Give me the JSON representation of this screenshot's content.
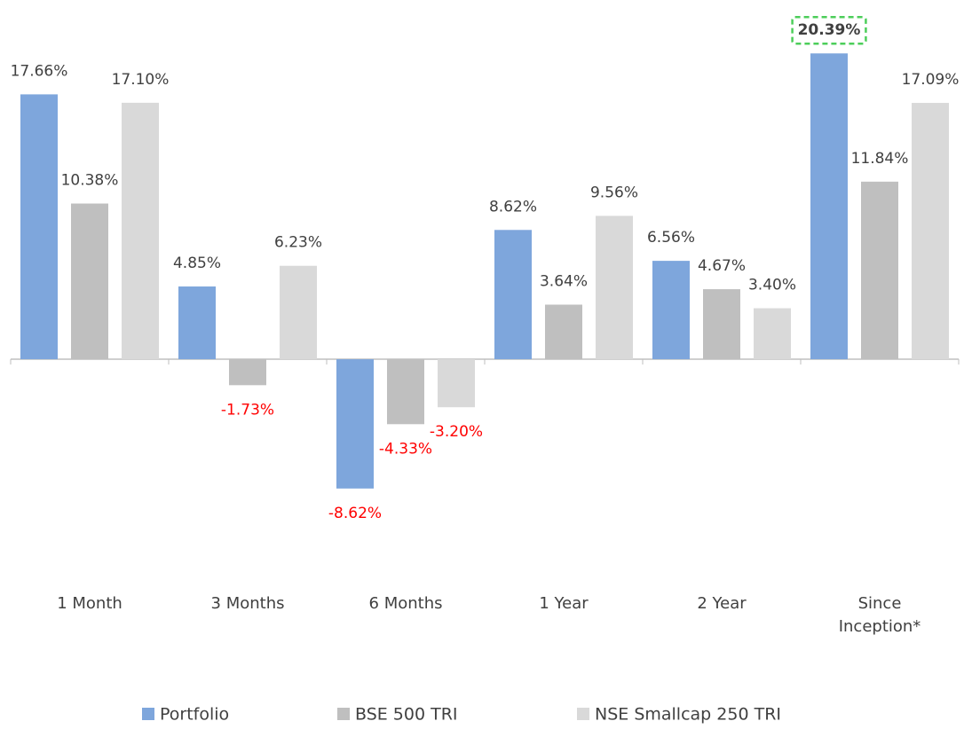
{
  "chart_data": {
    "type": "bar",
    "categories": [
      "1 Month",
      "3 Months",
      "6 Months",
      "1 Year",
      "2 Year",
      "Since Inception*"
    ],
    "series": [
      {
        "name": "Portfolio",
        "color": "#7ea6dc",
        "values": [
          17.66,
          4.85,
          -8.62,
          8.62,
          6.56,
          20.39
        ],
        "value_labels": [
          "17.66%",
          "4.85%",
          "-8.62%",
          "8.62%",
          "6.56%",
          "20.39%"
        ]
      },
      {
        "name": "BSE 500 TRI",
        "color": "#bfbfbf",
        "values": [
          10.38,
          -1.73,
          -4.33,
          3.64,
          4.67,
          11.84
        ],
        "value_labels": [
          "10.38%",
          "-1.73%",
          "-4.33%",
          "3.64%",
          "4.67%",
          "11.84%"
        ]
      },
      {
        "name": "NSE Smallcap 250 TRI",
        "color": "#d9d9d9",
        "values": [
          17.1,
          6.23,
          -3.2,
          9.56,
          3.4,
          17.09
        ],
        "value_labels": [
          "17.10%",
          "6.23%",
          "-3.20%",
          "9.56%",
          "3.40%",
          "17.09%"
        ]
      }
    ],
    "ylim": [
      -12,
      22
    ],
    "negative_label_color": "#ff0000",
    "highlight_color": "#4cce5a",
    "legend": "bottom"
  }
}
